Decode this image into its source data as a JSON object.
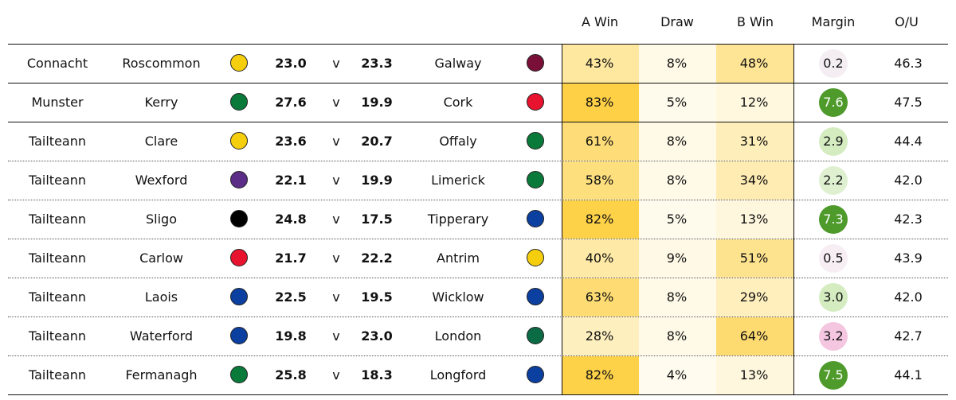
{
  "chart_data": {
    "type": "table",
    "columns": [
      "A Win",
      "Draw",
      "B Win",
      "Margin",
      "O/U"
    ],
    "rows": [
      {
        "comp": "Connacht",
        "team_a": "Roscommon",
        "color_a": "#f5cf0d",
        "score_a": "23.0",
        "vs": "v",
        "score_b": "23.3",
        "team_b": "Galway",
        "color_b": "#7a1038",
        "a_win": "43%",
        "a_win_val": 43,
        "draw": "8%",
        "draw_val": 8,
        "b_win": "48%",
        "b_win_val": 48,
        "margin": "0.2",
        "margin_color": "#f4eef2",
        "margin_text_color": "#111",
        "ou": "46.3",
        "sep_after": "solid"
      },
      {
        "comp": "Munster",
        "team_a": "Kerry",
        "color_a": "#0a7a3a",
        "score_a": "27.6",
        "vs": "v",
        "score_b": "19.9",
        "team_b": "Cork",
        "color_b": "#e8132f",
        "a_win": "83%",
        "a_win_val": 83,
        "draw": "5%",
        "draw_val": 5,
        "b_win": "12%",
        "b_win_val": 12,
        "margin": "7.6",
        "margin_color": "#4e9a2a",
        "margin_text_color": "#ffffff",
        "ou": "47.5",
        "sep_after": "solid"
      },
      {
        "comp": "Tailteann",
        "team_a": "Clare",
        "color_a": "#f5cf0d",
        "score_a": "23.6",
        "vs": "v",
        "score_b": "20.7",
        "team_b": "Offaly",
        "color_b": "#0a7a3a",
        "a_win": "61%",
        "a_win_val": 61,
        "draw": "8%",
        "draw_val": 8,
        "b_win": "31%",
        "b_win_val": 31,
        "margin": "2.9",
        "margin_color": "#d4ecc0",
        "margin_text_color": "#111",
        "ou": "44.4",
        "sep_after": "dotted"
      },
      {
        "comp": "Tailteann",
        "team_a": "Wexford",
        "color_a": "#5b2d86",
        "score_a": "22.1",
        "vs": "v",
        "score_b": "19.9",
        "team_b": "Limerick",
        "color_b": "#0a7a3a",
        "a_win": "58%",
        "a_win_val": 58,
        "draw": "8%",
        "draw_val": 8,
        "b_win": "34%",
        "b_win_val": 34,
        "margin": "2.2",
        "margin_color": "#dff0d0",
        "margin_text_color": "#111",
        "ou": "42.0",
        "sep_after": "dotted"
      },
      {
        "comp": "Tailteann",
        "team_a": "Sligo",
        "color_a": "#000000",
        "score_a": "24.8",
        "vs": "v",
        "score_b": "17.5",
        "team_b": "Tipperary",
        "color_b": "#0b3fa0",
        "a_win": "82%",
        "a_win_val": 82,
        "draw": "5%",
        "draw_val": 5,
        "b_win": "13%",
        "b_win_val": 13,
        "margin": "7.3",
        "margin_color": "#4e9a2a",
        "margin_text_color": "#ffffff",
        "ou": "42.3",
        "sep_after": "dotted"
      },
      {
        "comp": "Tailteann",
        "team_a": "Carlow",
        "color_a": "#e8132f",
        "score_a": "21.7",
        "vs": "v",
        "score_b": "22.2",
        "team_b": "Antrim",
        "color_b": "#f5cf0d",
        "a_win": "40%",
        "a_win_val": 40,
        "draw": "9%",
        "draw_val": 9,
        "b_win": "51%",
        "b_win_val": 51,
        "margin": "0.5",
        "margin_color": "#f6eef3",
        "margin_text_color": "#111",
        "ou": "43.9",
        "sep_after": "dotted"
      },
      {
        "comp": "Tailteann",
        "team_a": "Laois",
        "color_a": "#0b3fa0",
        "score_a": "22.5",
        "vs": "v",
        "score_b": "19.5",
        "team_b": "Wicklow",
        "color_b": "#0b3fa0",
        "a_win": "63%",
        "a_win_val": 63,
        "draw": "8%",
        "draw_val": 8,
        "b_win": "29%",
        "b_win_val": 29,
        "margin": "3.0",
        "margin_color": "#d4ecc0",
        "margin_text_color": "#111",
        "ou": "42.0",
        "sep_after": "dotted"
      },
      {
        "comp": "Tailteann",
        "team_a": "Waterford",
        "color_a": "#0b3fa0",
        "score_a": "19.8",
        "vs": "v",
        "score_b": "23.0",
        "team_b": "London",
        "color_b": "#0a6b45",
        "a_win": "28%",
        "a_win_val": 28,
        "draw": "8%",
        "draw_val": 8,
        "b_win": "64%",
        "b_win_val": 64,
        "margin": "3.2",
        "margin_color": "#f4c6e0",
        "margin_text_color": "#111",
        "ou": "42.7",
        "sep_after": "dotted"
      },
      {
        "comp": "Tailteann",
        "team_a": "Fermanagh",
        "color_a": "#0a7a3a",
        "score_a": "25.8",
        "vs": "v",
        "score_b": "18.3",
        "team_b": "Longford",
        "color_b": "#0b3fa0",
        "a_win": "82%",
        "a_win_val": 82,
        "draw": "4%",
        "draw_val": 4,
        "b_win": "13%",
        "b_win_val": 13,
        "margin": "7.5",
        "margin_color": "#4e9a2a",
        "margin_text_color": "#ffffff",
        "ou": "44.1",
        "sep_after": "solid"
      }
    ]
  }
}
